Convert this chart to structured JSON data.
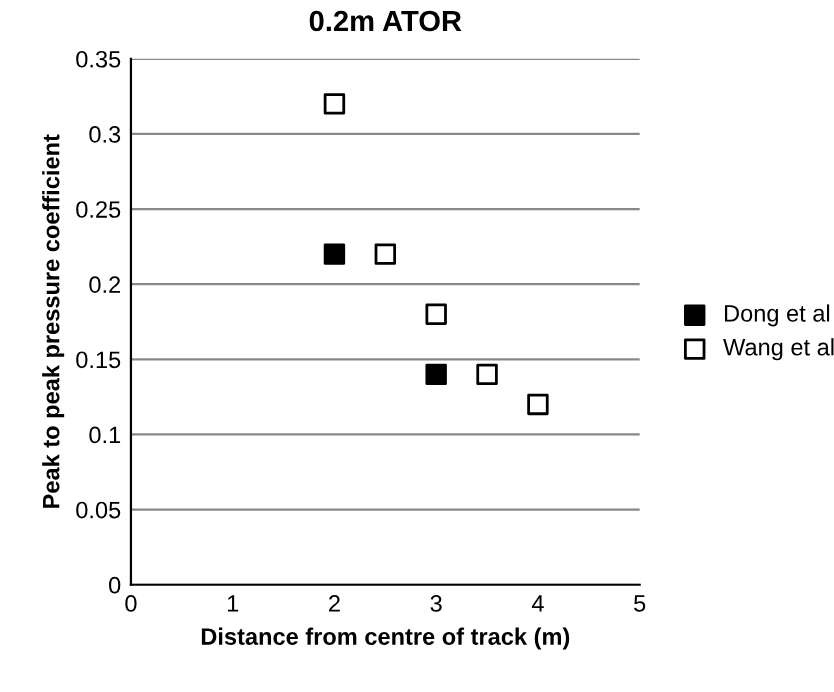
{
  "chart_data": {
    "type": "scatter",
    "title": "0.2m ATOR",
    "xlabel": "Distance from centre of track (m)",
    "ylabel": "Peak to peak pressure coefficient",
    "series": [
      {
        "name": "Dong et al",
        "color": "#000000",
        "x": [
          2,
          3
        ],
        "values": [
          0.22,
          0.14
        ]
      },
      {
        "name": "Wang et al",
        "color": "#ffffff",
        "x": [
          2,
          2.5,
          3,
          3.5,
          4
        ],
        "values": [
          0.32,
          0.22,
          0.18,
          0.14,
          0.12
        ]
      }
    ],
    "xlim": [
      0,
      5
    ],
    "xticks": [
      0,
      1,
      2,
      3,
      4,
      5
    ],
    "ylim": [
      0,
      0.35
    ],
    "yticks": [
      0,
      0.05,
      0.1,
      0.15,
      0.2,
      0.25,
      0.3,
      0.35
    ],
    "grid": "y",
    "legend": "right",
    "marker": "square"
  }
}
